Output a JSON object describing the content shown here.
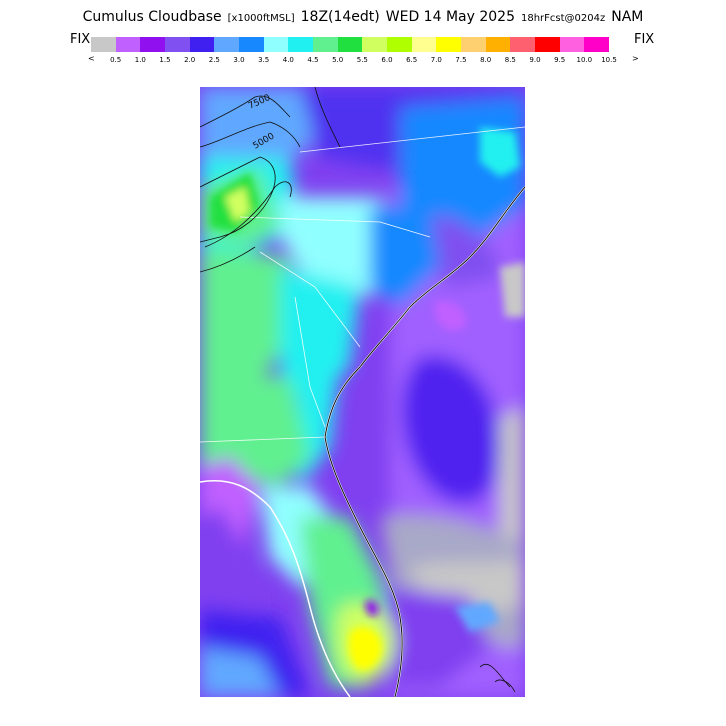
{
  "header": {
    "product": "Cumulus Cloudbase",
    "units": "[x1000ftMSL]",
    "valid_time": "18Z(14edt)",
    "date": "WED 14 May 2025",
    "forecast": "18hrFcst@0204z",
    "model": "NAM"
  },
  "legend": {
    "left_label": "FIX",
    "right_label": "FIX",
    "less_symbol": "<",
    "more_symbol": ">",
    "ticks": [
      "0.5",
      "1.0",
      "1.5",
      "2.0",
      "2.5",
      "3.0",
      "3.5",
      "4.0",
      "4.5",
      "5.0",
      "5.5",
      "6.0",
      "6.5",
      "7.0",
      "7.5",
      "8.0",
      "8.5",
      "9.0",
      "9.5",
      "10.0",
      "10.5"
    ],
    "colors": [
      "#c8c8c8",
      "#c060ff",
      "#9010f0",
      "#8050f0",
      "#4020f0",
      "#60a8ff",
      "#1888ff",
      "#90ffff",
      "#20f0f0",
      "#60f090",
      "#20e040",
      "#d0ff60",
      "#b0ff00",
      "#ffff90",
      "#ffff00",
      "#ffd070",
      "#ffb000",
      "#ff6070",
      "#ff0000",
      "#ff60e0",
      "#ff00c8"
    ]
  },
  "map": {
    "contour_labels": [
      "7500",
      "5000"
    ]
  }
}
